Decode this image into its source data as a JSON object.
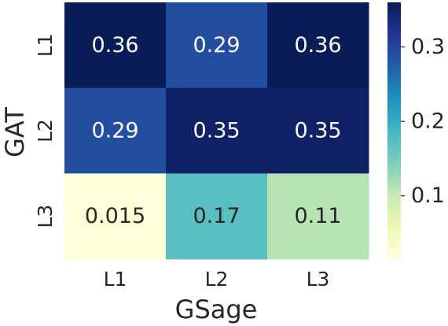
{
  "chart_data": {
    "type": "heatmap",
    "xlabel": "GSage",
    "ylabel": "GAT",
    "x_categories": [
      "L1",
      "L2",
      "L3"
    ],
    "y_categories": [
      "L1",
      "L2",
      "L3"
    ],
    "values": [
      [
        0.36,
        0.29,
        0.36
      ],
      [
        0.29,
        0.35,
        0.35
      ],
      [
        0.015,
        0.17,
        0.11
      ]
    ],
    "cell_labels": [
      [
        "0.36",
        "0.29",
        "0.36"
      ],
      [
        "0.29",
        "0.35",
        "0.35"
      ],
      [
        "0.015",
        "0.17",
        "0.11"
      ]
    ],
    "colormap": "YlGnBu",
    "colorbar": {
      "range": [
        0.015,
        0.36
      ],
      "ticks": [
        0.1,
        0.2,
        0.3
      ],
      "tick_labels": [
        "0.1",
        "0.2",
        "0.3"
      ],
      "placement": "right"
    },
    "colors": {
      "colormap_stops": [
        "#ffffd9",
        "#edf8b1",
        "#c7e9b4",
        "#7fcdbb",
        "#41b6c4",
        "#1d91c0",
        "#225ea8",
        "#253494",
        "#081d58"
      ],
      "text_dark": "#262626",
      "text_light": "#ffffff"
    },
    "grid": false
  }
}
